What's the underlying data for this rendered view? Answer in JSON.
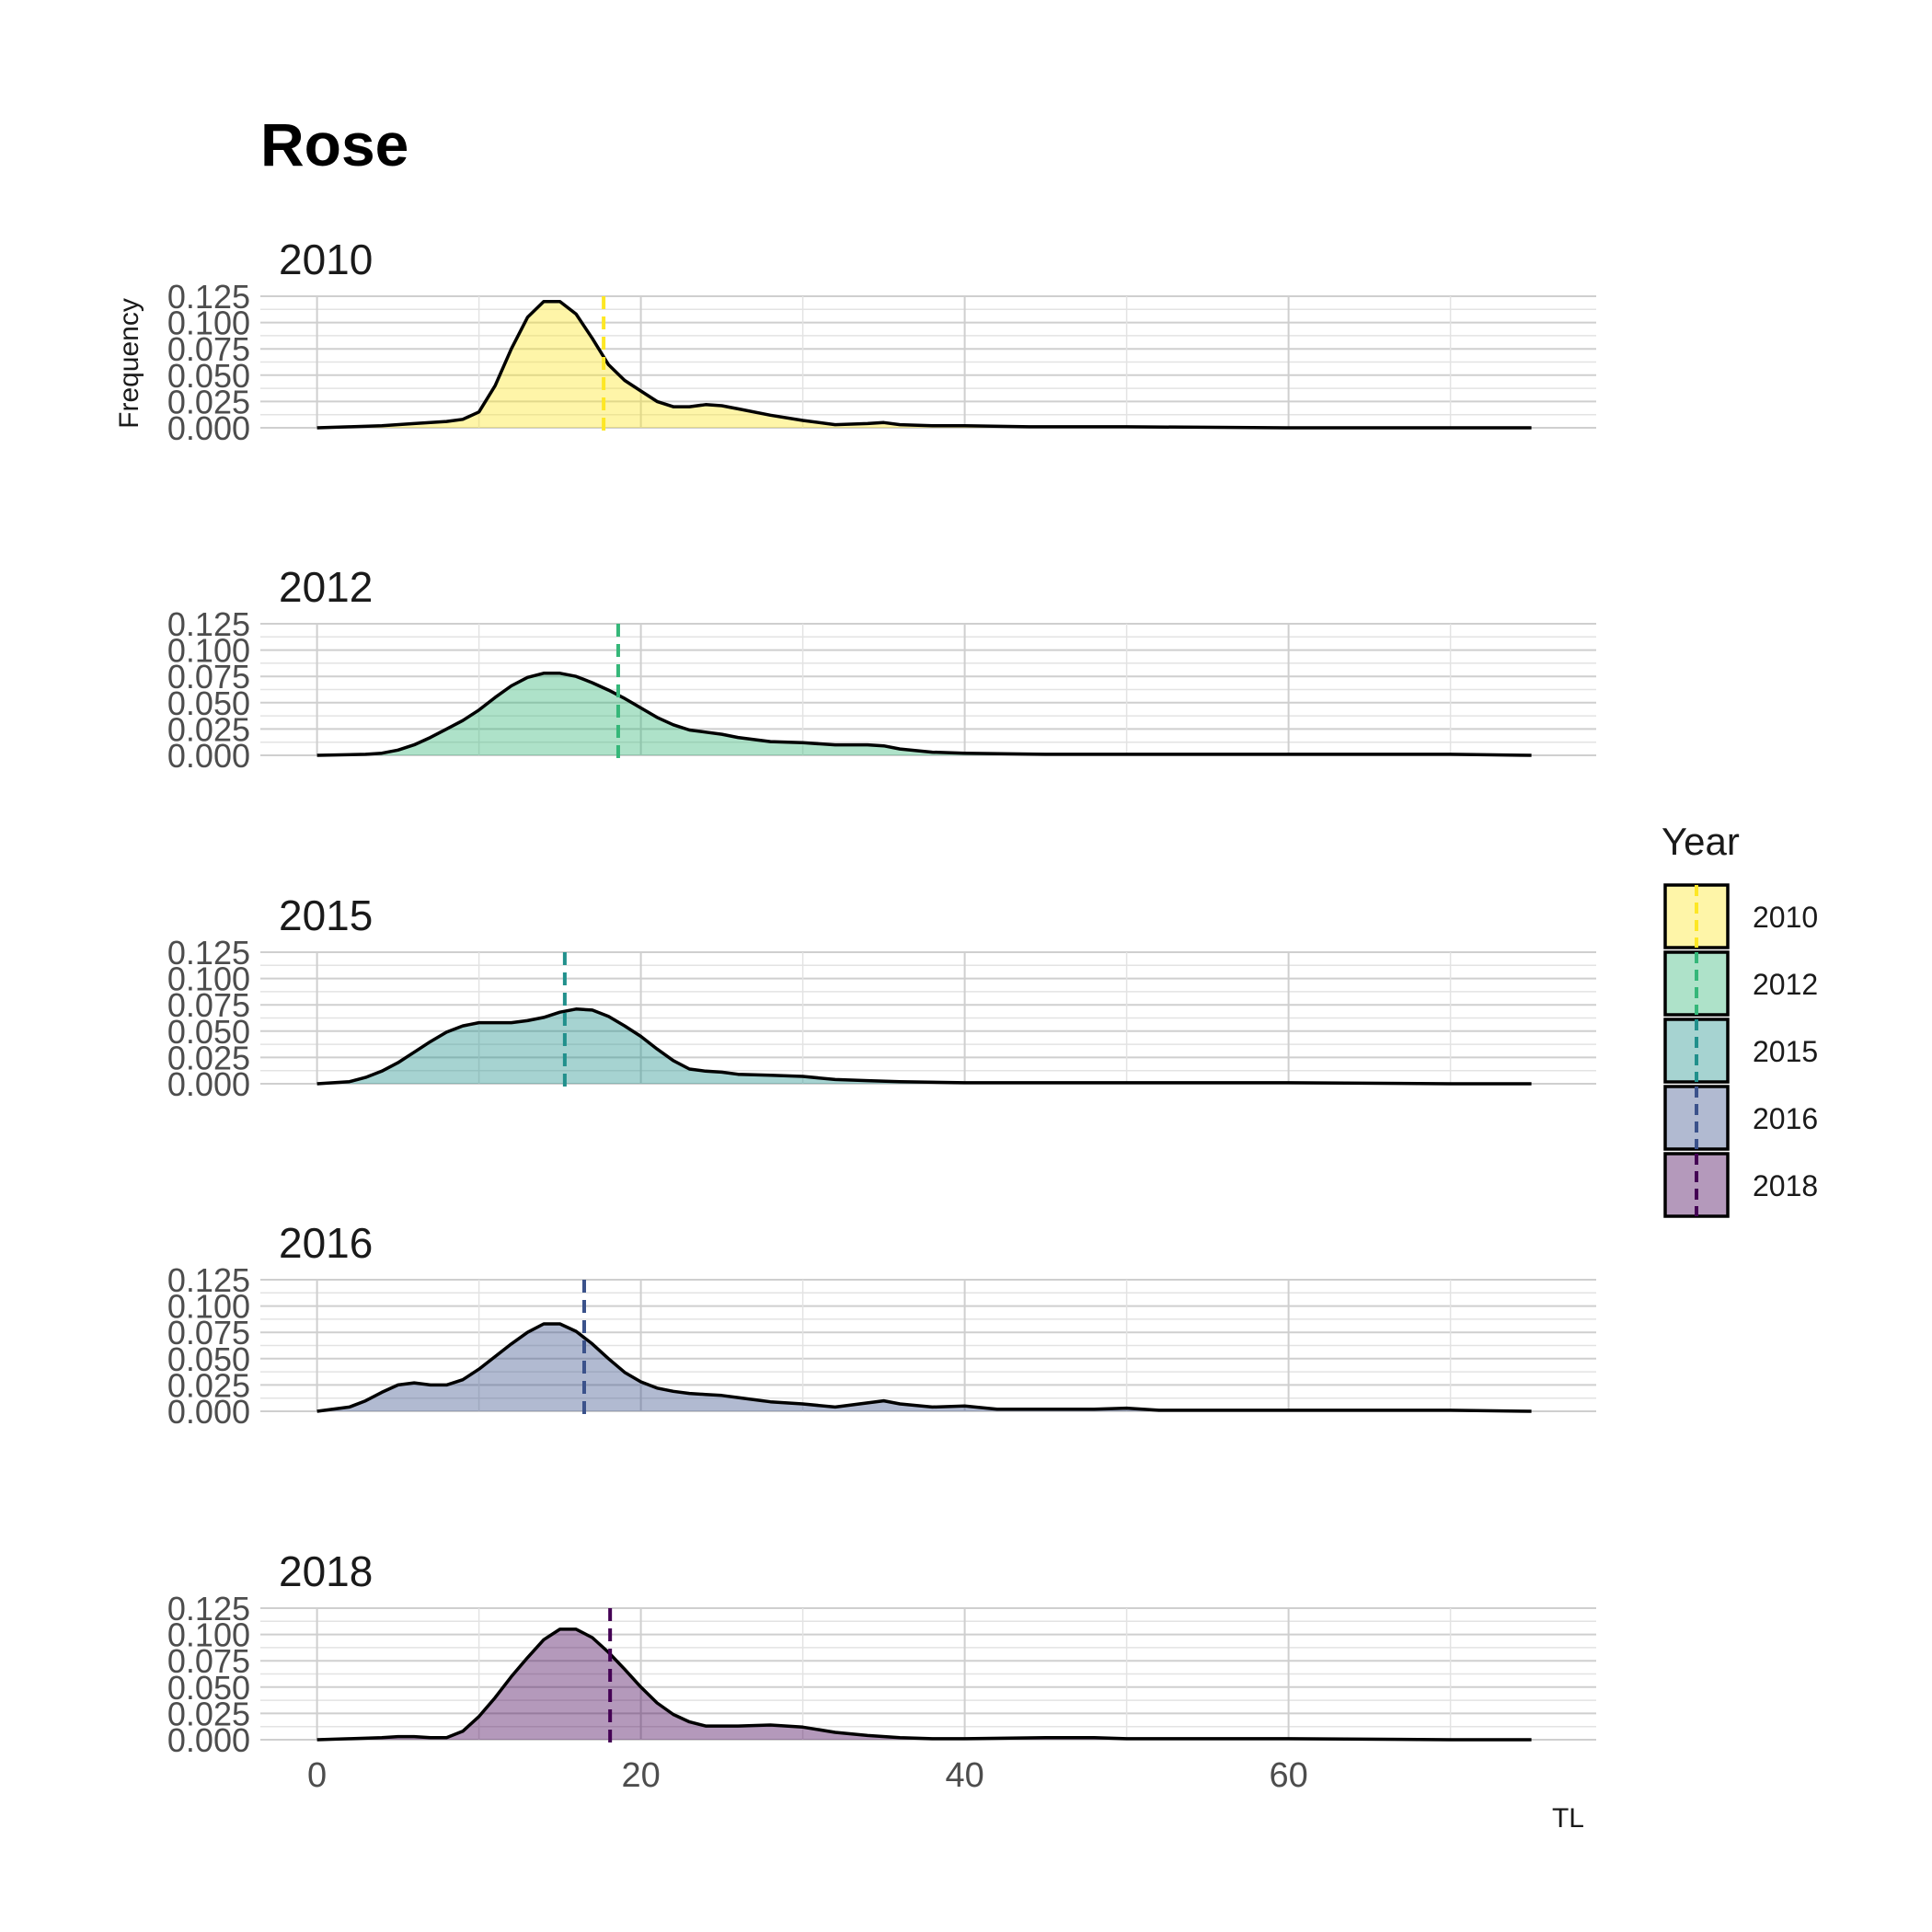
{
  "chart_data": {
    "type": "area",
    "title": "Rose",
    "xlabel": "TL",
    "ylabel": "Frequency",
    "xlim": [
      -3.5,
      79
    ],
    "ylim": [
      0,
      0.125
    ],
    "x_ticks": [
      0,
      20,
      40,
      60
    ],
    "x_tick_labels": [
      "0",
      "20",
      "40",
      "60"
    ],
    "y_ticks": [
      0,
      0.0125,
      0.025,
      0.0375,
      0.05,
      0.0625,
      0.075,
      0.0875,
      0.1,
      0.1125,
      0.125
    ],
    "y_tick_labels": [
      "0.000",
      "0.025",
      "0.050",
      "0.075",
      "0.100",
      "0.125"
    ],
    "grid": true,
    "legend": {
      "title": "Year",
      "position": "right"
    },
    "series": [
      {
        "name": "2010",
        "color": "#FDE725",
        "mean": 17.7,
        "x": [
          0,
          2,
          4,
          6,
          8,
          9,
          10,
          11,
          12,
          13,
          14,
          15,
          16,
          17,
          18,
          19,
          20,
          21,
          22,
          23,
          24,
          25,
          26,
          28,
          30,
          32,
          34,
          35,
          36,
          38,
          40,
          44,
          50,
          60,
          70,
          75
        ],
        "y": [
          0,
          0.001,
          0.002,
          0.004,
          0.006,
          0.008,
          0.015,
          0.04,
          0.075,
          0.105,
          0.12,
          0.12,
          0.108,
          0.085,
          0.06,
          0.045,
          0.035,
          0.025,
          0.02,
          0.02,
          0.022,
          0.021,
          0.018,
          0.012,
          0.007,
          0.003,
          0.004,
          0.005,
          0.003,
          0.002,
          0.002,
          0.001,
          0.001,
          0,
          0,
          0
        ]
      },
      {
        "name": "2012",
        "color": "#35B779",
        "mean": 18.6,
        "x": [
          0,
          3,
          4,
          5,
          6,
          7,
          8,
          9,
          10,
          11,
          12,
          13,
          14,
          15,
          16,
          17,
          18,
          19,
          20,
          21,
          22,
          23,
          24,
          25,
          26,
          28,
          30,
          32,
          34,
          35,
          36,
          38,
          40,
          45,
          50,
          55,
          60,
          70,
          75
        ],
        "y": [
          0,
          0.001,
          0.002,
          0.005,
          0.01,
          0.017,
          0.025,
          0.033,
          0.043,
          0.055,
          0.066,
          0.074,
          0.078,
          0.078,
          0.075,
          0.069,
          0.062,
          0.054,
          0.045,
          0.036,
          0.029,
          0.024,
          0.022,
          0.02,
          0.017,
          0.013,
          0.012,
          0.01,
          0.01,
          0.009,
          0.006,
          0.003,
          0.002,
          0.001,
          0.001,
          0.001,
          0.001,
          0.001,
          0
        ]
      },
      {
        "name": "2015",
        "color": "#21908C",
        "mean": 15.3,
        "x": [
          0,
          2,
          3,
          4,
          5,
          6,
          7,
          8,
          9,
          10,
          11,
          12,
          13,
          14,
          15,
          16,
          17,
          18,
          19,
          20,
          21,
          22,
          23,
          24,
          25,
          26,
          28,
          30,
          32,
          34,
          36,
          40,
          45,
          50,
          55,
          60,
          70,
          75
        ],
        "y": [
          0,
          0.002,
          0.006,
          0.012,
          0.02,
          0.03,
          0.04,
          0.049,
          0.055,
          0.058,
          0.058,
          0.058,
          0.06,
          0.063,
          0.068,
          0.071,
          0.07,
          0.064,
          0.055,
          0.045,
          0.033,
          0.022,
          0.014,
          0.012,
          0.011,
          0.009,
          0.008,
          0.007,
          0.004,
          0.003,
          0.002,
          0.001,
          0.001,
          0.001,
          0.001,
          0.001,
          0,
          0
        ]
      },
      {
        "name": "2016",
        "color": "#3B528B",
        "mean": 16.5,
        "x": [
          0,
          2,
          3,
          4,
          5,
          6,
          7,
          8,
          9,
          10,
          11,
          12,
          13,
          14,
          15,
          16,
          17,
          18,
          19,
          20,
          21,
          22,
          23,
          24,
          25,
          26,
          28,
          30,
          32,
          33,
          35,
          36,
          38,
          40,
          42,
          45,
          48,
          50,
          52,
          55,
          60,
          70,
          75
        ],
        "y": [
          0,
          0.004,
          0.01,
          0.018,
          0.025,
          0.027,
          0.025,
          0.025,
          0.03,
          0.04,
          0.052,
          0.064,
          0.075,
          0.083,
          0.083,
          0.076,
          0.064,
          0.05,
          0.037,
          0.028,
          0.022,
          0.019,
          0.017,
          0.016,
          0.015,
          0.013,
          0.009,
          0.007,
          0.004,
          0.006,
          0.01,
          0.007,
          0.004,
          0.005,
          0.002,
          0.002,
          0.002,
          0.003,
          0.001,
          0.001,
          0.001,
          0.001,
          0
        ]
      },
      {
        "name": "2018",
        "color": "#440154",
        "mean": 18.1,
        "x": [
          0,
          2,
          4,
          5,
          6,
          7,
          8,
          9,
          10,
          11,
          12,
          13,
          14,
          15,
          16,
          17,
          18,
          19,
          20,
          21,
          22,
          23,
          24,
          26,
          28,
          30,
          32,
          34,
          36,
          38,
          40,
          45,
          48,
          50,
          55,
          60,
          70,
          75
        ],
        "y": [
          0,
          0.001,
          0.002,
          0.003,
          0.003,
          0.002,
          0.002,
          0.008,
          0.022,
          0.04,
          0.06,
          0.078,
          0.095,
          0.105,
          0.105,
          0.097,
          0.083,
          0.067,
          0.05,
          0.035,
          0.024,
          0.017,
          0.013,
          0.013,
          0.014,
          0.012,
          0.007,
          0.004,
          0.002,
          0.001,
          0.001,
          0.002,
          0.002,
          0.001,
          0.001,
          0.001,
          0,
          0
        ]
      }
    ]
  }
}
